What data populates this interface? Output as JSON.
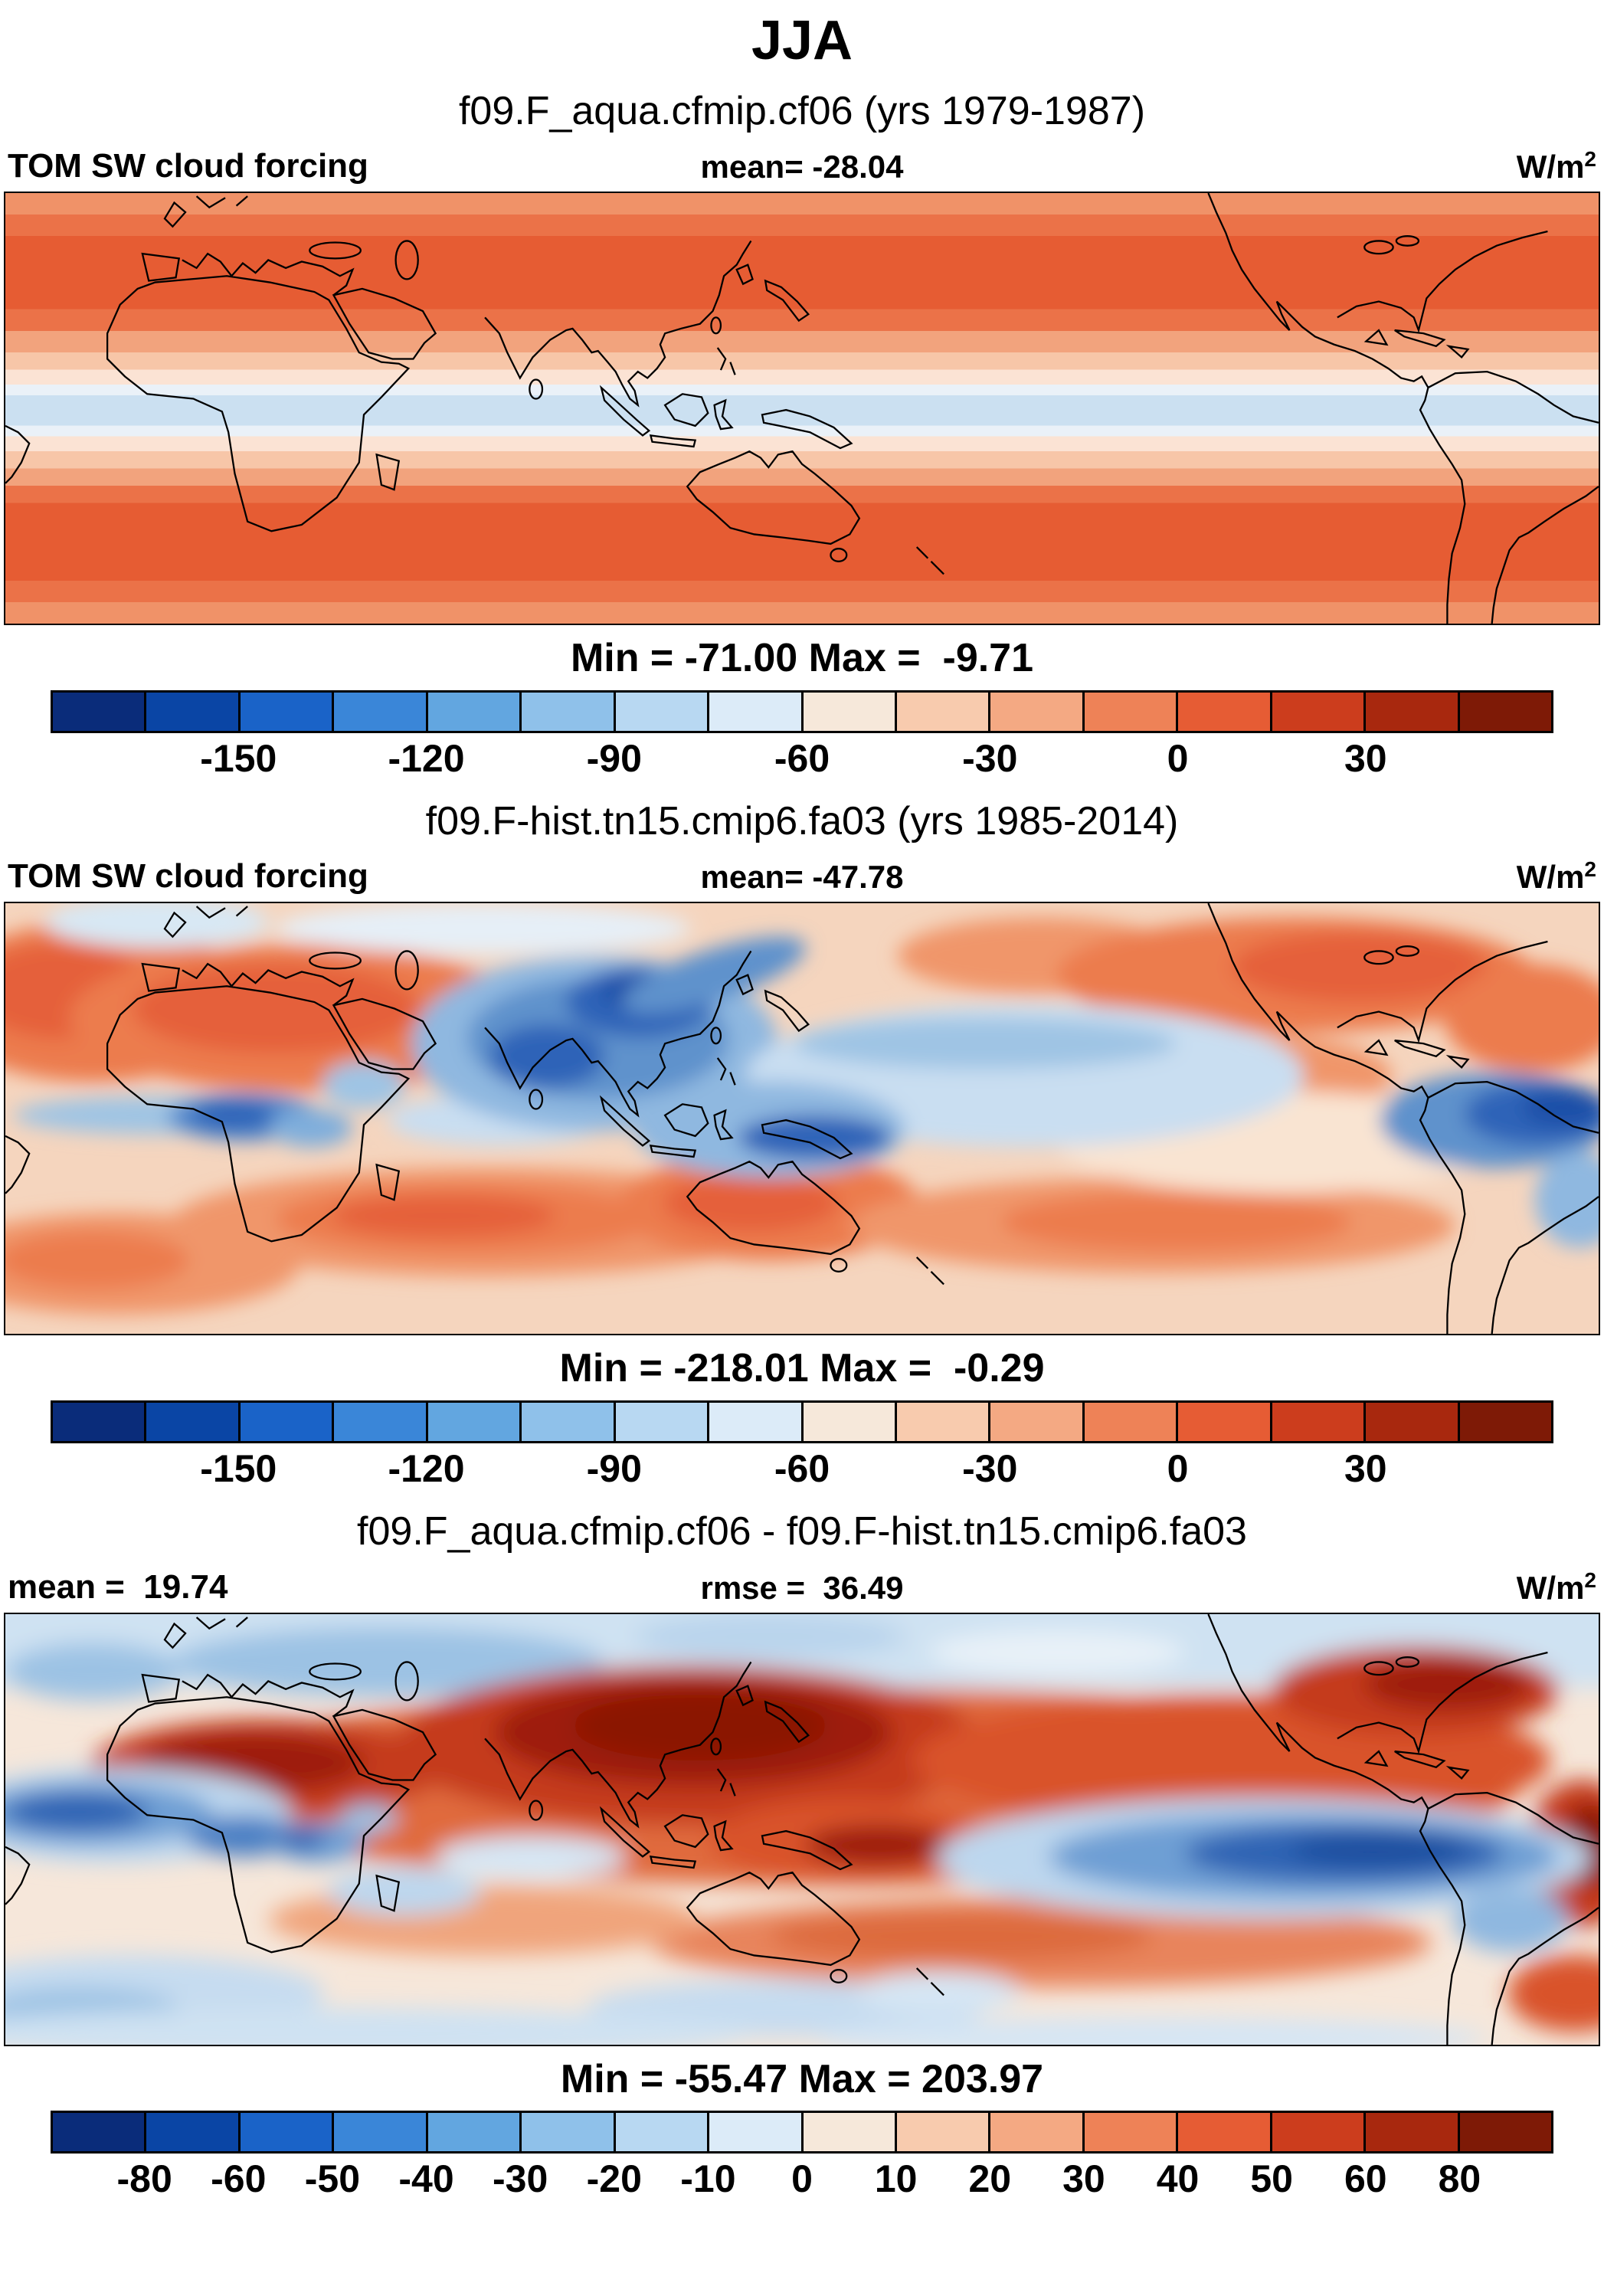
{
  "title": "JJA",
  "units": {
    "base": "W/m",
    "exp": "2"
  },
  "panels": [
    {
      "subtitle": "f09.F_aqua.cfmip.cf06 (yrs 1979-1987)",
      "var_label": "TOM SW cloud forcing",
      "mean_label": "mean= -28.04",
      "min_max": "Min = -71.00 Max =  -9.71"
    },
    {
      "subtitle": "f09.F-hist.tn15.cmip6.fa03 (yrs 1985-2014)",
      "var_label": "TOM SW cloud forcing",
      "mean_label": "mean= -47.78",
      "min_max": "Min = -218.01 Max =  -0.29"
    },
    {
      "subtitle": "f09.F_aqua.cfmip.cf06 - f09.F-hist.tn15.cmip6.fa03",
      "mean_label": "mean =  19.74",
      "rmse_label": "rmse =  36.49",
      "min_max": "Min = -55.47 Max = 203.97"
    }
  ],
  "colorbars": {
    "cb12": {
      "colors": [
        "#0A2C7A",
        "#0A45A5",
        "#1A63C8",
        "#3A86D8",
        "#62A6E0",
        "#8FC1EA",
        "#B8D8F2",
        "#DCEBF8",
        "#F6E8DA",
        "#F8CBAE",
        "#F4A983",
        "#EE8257",
        "#E65C34",
        "#CC3D1D",
        "#A8280E",
        "#7E1A06"
      ],
      "tick_labels": [
        "-150",
        "-120",
        "-90",
        "-60",
        "-30",
        "0",
        "30"
      ],
      "tick_positions": [
        12.5,
        25,
        37.5,
        50,
        62.5,
        75,
        87.5
      ]
    },
    "cb3": {
      "colors": [
        "#0A2C7A",
        "#0A45A5",
        "#1A63C8",
        "#3A86D8",
        "#62A6E0",
        "#8FC1EA",
        "#B8D8F2",
        "#DCEBF8",
        "#F6E8DA",
        "#F8CBAE",
        "#F4A983",
        "#EE8257",
        "#E65C34",
        "#CC3D1D",
        "#A8280E",
        "#7E1A06"
      ],
      "tick_labels": [
        "-80",
        "-60",
        "-50",
        "-40",
        "-30",
        "-20",
        "-10",
        "0",
        "10",
        "20",
        "30",
        "40",
        "50",
        "60",
        "80"
      ],
      "tick_positions": [
        6.25,
        12.5,
        18.75,
        25,
        31.25,
        37.5,
        43.75,
        50,
        56.25,
        62.5,
        68.75,
        75,
        81.25,
        87.5,
        93.75
      ]
    }
  },
  "chart_data": [
    {
      "type": "heatmap",
      "panel": "top",
      "title": "f09.F_aqua.cfmip.cf06 (yrs 1979-1987)",
      "variable": "TOM SW cloud forcing",
      "season": "JJA",
      "units": "W/m2",
      "mean": -28.04,
      "min": -71.0,
      "max": -9.71,
      "colorbar_ticks": [
        -150,
        -120,
        -90,
        -60,
        -30,
        0,
        30
      ],
      "pattern": "Zonally symmetric aquaplanet field: weak negative forcing (orange bands) in the subtropics/midlatitudes of both hemispheres, strongest negative values (light blue band) along the equator; coastline overlay only."
    },
    {
      "type": "heatmap",
      "panel": "middle",
      "title": "f09.F-hist.tn15.cmip6.fa03 (yrs 1985-2014)",
      "variable": "TOM SW cloud forcing",
      "season": "JJA",
      "units": "W/m2",
      "mean": -47.78,
      "min": -218.01,
      "max": -0.29,
      "colorbar_ticks": [
        -150,
        -120,
        -90,
        -60,
        -30,
        0,
        30
      ],
      "pattern": "Strong negative forcing (deep blue) over India/Bay of Bengal/Southeast Asia monsoon region, Maritime Continent, equatorial West Africa, Atlantic ITCZ and east Pacific ITCZ; weak forcing (orange) over Sahara, subtropical ocean basins and southern midlatitude bands."
    },
    {
      "type": "heatmap",
      "panel": "bottom",
      "title": "f09.F_aqua.cfmip.cf06 - f09.F-hist.tn15.cmip6.fa03",
      "variable": "TOM SW cloud forcing difference",
      "season": "JJA",
      "units": "W/m2",
      "mean": 19.74,
      "rmse": 36.49,
      "min": -55.47,
      "max": 203.97,
      "colorbar_ticks": [
        -80,
        -60,
        -50,
        -40,
        -30,
        -20,
        -10,
        0,
        10,
        20,
        30,
        40,
        50,
        60,
        80
      ],
      "pattern": "Large positive differences (dark red) over South Asia, the Sahel and the northern tropical Pacific and Maritime Continent; negative differences (blue) over the equatorial Atlantic, east equatorial Pacific, central Africa and high-latitude bands."
    }
  ]
}
